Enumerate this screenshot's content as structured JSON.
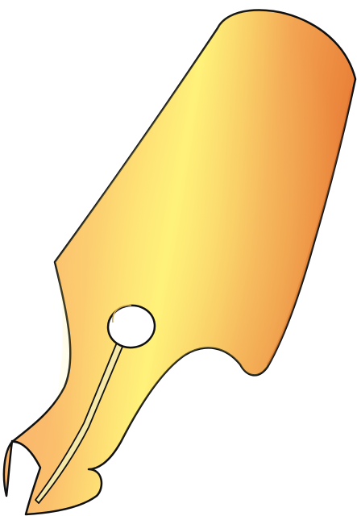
{
  "illustration": {
    "icon": "fountain-pen-nib-icon",
    "colors": {
      "outline": "#111111",
      "gradient_light": "#fff27a",
      "gradient_mid": "#fbc06c",
      "gradient_peach": "#f7a36f",
      "gradient_dark": "#e87b35",
      "breather_hole": "#ffffff",
      "slit_highlight": "#f6e9a8"
    }
  }
}
